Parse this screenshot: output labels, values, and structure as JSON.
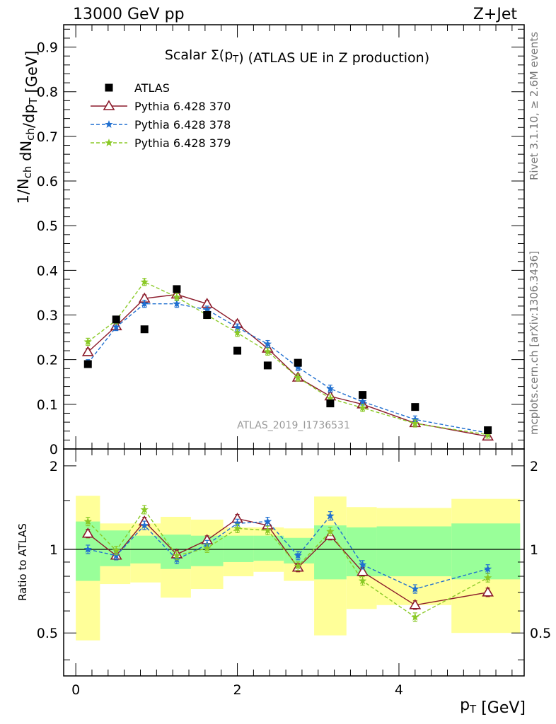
{
  "header": {
    "left": "13000 GeV pp",
    "right": "Z+Jet"
  },
  "side_labels": {
    "rivet": "Rivet 3.1.10, ≥ 2.6M events",
    "mcplots": "mcplots.cern.ch [arXiv:1306.3436]"
  },
  "chart_data": {
    "type": "scatter",
    "title": "Scalar Σ(p_T) (ATLAS UE in Z production)",
    "watermark": "ATLAS_2019_I1736531",
    "main": {
      "ylabel": "1/N_ch dN_ch/dp_T [GeV]",
      "ylim": [
        0,
        0.95
      ],
      "yticks": [
        "0",
        "0.1",
        "0.2",
        "0.3",
        "0.4",
        "0.5",
        "0.6",
        "0.7",
        "0.8",
        "0.9"
      ]
    },
    "ratio": {
      "ylabel": "Ratio to ATLAS",
      "ylim": [
        0.35,
        2.3
      ],
      "yticks": [
        "0.5",
        "1",
        "2"
      ]
    },
    "xlabel": "p_T [GeV]",
    "xlim": [
      -0.15,
      5.55
    ],
    "xticks": [
      "0",
      "2",
      "4"
    ],
    "legend": {
      "position": "top-left",
      "entries": [
        "ATLAS",
        "Pythia 6.428 370",
        "Pythia 6.428 378",
        "Pythia 6.428 379"
      ]
    },
    "x": [
      0.15,
      0.5,
      0.85,
      1.25,
      1.625,
      2.0,
      2.375,
      2.75,
      3.15,
      3.55,
      4.2,
      5.1
    ],
    "bin_edges": [
      0.0,
      0.3,
      0.675,
      1.05,
      1.425,
      1.825,
      2.2,
      2.575,
      2.95,
      3.35,
      3.725,
      4.65,
      5.5
    ],
    "series": [
      {
        "name": "ATLAS",
        "color": "#000000",
        "marker": "square",
        "values": [
          0.19,
          0.29,
          0.268,
          0.358,
          0.3,
          0.22,
          0.187,
          0.193,
          0.102,
          0.121,
          0.094,
          0.042
        ]
      },
      {
        "name": "Pythia 6.428 370",
        "color": "#8b1a2a",
        "marker": "triangle",
        "line": "solid",
        "values": [
          0.217,
          0.275,
          0.337,
          0.346,
          0.325,
          0.28,
          0.225,
          0.16,
          0.118,
          0.1,
          0.058,
          0.028
        ],
        "ratio": [
          1.14,
          0.95,
          1.26,
          0.96,
          1.08,
          1.29,
          1.22,
          0.86,
          1.12,
          0.83,
          0.63,
          0.7
        ]
      },
      {
        "name": "Pythia 6.428 378",
        "color": "#1f6fd0",
        "marker": "star",
        "line": "dashed",
        "values": [
          0.192,
          0.273,
          0.325,
          0.325,
          0.312,
          0.272,
          0.235,
          0.183,
          0.135,
          0.106,
          0.066,
          0.036
        ],
        "ratio": [
          1.0,
          0.95,
          1.22,
          0.92,
          1.04,
          1.24,
          1.26,
          0.95,
          1.32,
          0.88,
          0.72,
          0.85
        ]
      },
      {
        "name": "Pythia 6.428 379",
        "color": "#8ac926",
        "marker": "star",
        "line": "dashed",
        "values": [
          0.24,
          0.288,
          0.374,
          0.34,
          0.3,
          0.26,
          0.218,
          0.16,
          0.113,
          0.092,
          0.057,
          0.032
        ],
        "ratio": [
          1.26,
          0.99,
          1.39,
          0.95,
          1.01,
          1.19,
          1.17,
          0.87,
          1.16,
          0.77,
          0.57,
          0.79
        ]
      }
    ],
    "uncertainty_bands": {
      "inner_color": "#99ff99",
      "outer_color": "#ffff99",
      "inner": [
        [
          0.77,
          1.26
        ],
        [
          0.87,
          1.17
        ],
        [
          0.89,
          1.12
        ],
        [
          0.85,
          1.13
        ],
        [
          0.87,
          1.12
        ],
        [
          0.9,
          1.12
        ],
        [
          0.91,
          1.12
        ],
        [
          0.89,
          1.1
        ],
        [
          0.78,
          1.22
        ],
        [
          0.8,
          1.2
        ],
        [
          0.8,
          1.21
        ],
        [
          0.78,
          1.24
        ]
      ],
      "outer": [
        [
          0.47,
          1.56
        ],
        [
          0.75,
          1.24
        ],
        [
          0.76,
          1.24
        ],
        [
          0.67,
          1.31
        ],
        [
          0.72,
          1.28
        ],
        [
          0.8,
          1.2
        ],
        [
          0.83,
          1.2
        ],
        [
          0.77,
          1.19
        ],
        [
          0.49,
          1.55
        ],
        [
          0.61,
          1.42
        ],
        [
          0.63,
          1.41
        ],
        [
          0.5,
          1.52
        ]
      ]
    }
  }
}
